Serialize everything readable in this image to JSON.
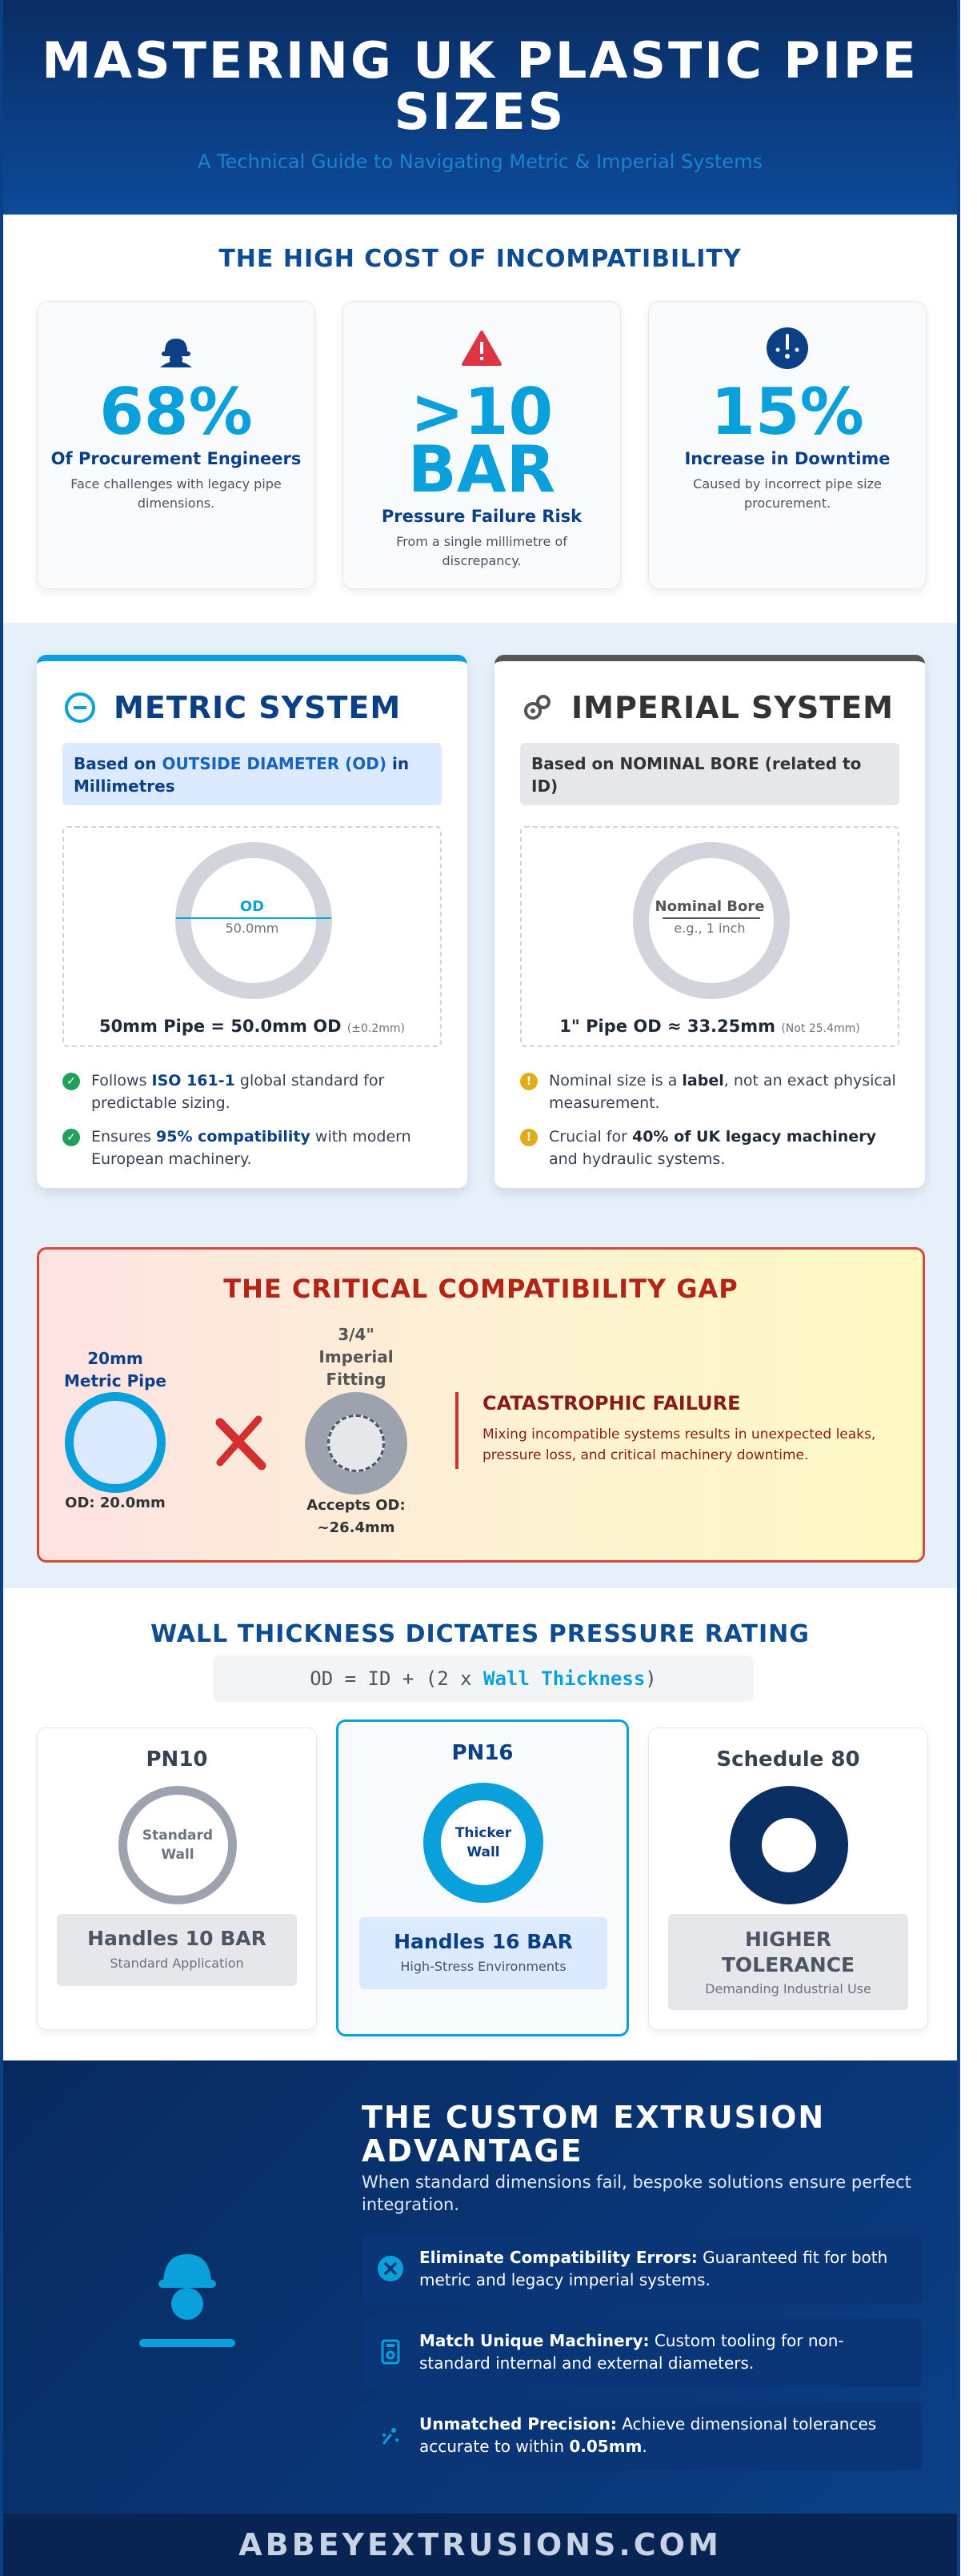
{
  "header": {
    "title": "MASTERING UK PLASTIC PIPE SIZES",
    "subtitle": "A Technical Guide to Navigating Metric & Imperial Systems"
  },
  "cost": {
    "title": "THE HIGH COST OF INCOMPATIBILITY",
    "stats": [
      {
        "icon": "engineer-icon",
        "value": "68%",
        "label": "Of Procurement Engineers",
        "desc": "Face challenges with legacy pipe dimensions."
      },
      {
        "icon": "warning-icon",
        "value_line1": ">10",
        "value_line2": "BAR",
        "label": "Pressure Failure Risk",
        "desc": "From a single millimetre of discrepancy."
      },
      {
        "icon": "clock-icon",
        "value": "15%",
        "label": "Increase in Downtime",
        "desc": "Caused by incorrect pipe size procurement."
      }
    ]
  },
  "metric": {
    "title": "METRIC SYSTEM",
    "basis_prefix": "Based on ",
    "basis_highlight": "OUTSIDE DIAMETER (OD)",
    "basis_suffix": " in Millimetres",
    "ring_label": "OD",
    "ring_value": "50.0mm",
    "formula": "50mm Pipe = 50.0mm OD",
    "formula_note": "(±0.2mm)",
    "bullets": [
      {
        "pre": "Follows ",
        "bold": "ISO 161-1",
        "post": " global standard for predictable sizing."
      },
      {
        "pre": "Ensures ",
        "bold": "95% compatibility",
        "post": " with modern European machinery."
      }
    ]
  },
  "imperial": {
    "title": "IMPERIAL SYSTEM",
    "basis_prefix": "Based on ",
    "basis_highlight": "NOMINAL BORE",
    "basis_suffix": " (related to ID)",
    "ring_label": "Nominal Bore",
    "ring_value": "e.g., 1 inch",
    "formula": "1\" Pipe OD ≈ 33.25mm",
    "formula_note": "(Not 25.4mm)",
    "bullets": [
      {
        "pre": "Nominal size is a ",
        "bold": "label",
        "post": ", not an exact physical measurement."
      },
      {
        "pre": "Crucial for ",
        "bold": "40% of UK legacy machinery",
        "post": " and hydraulic systems."
      }
    ]
  },
  "gap": {
    "title": "THE CRITICAL COMPATIBILITY GAP",
    "pipe_label_line1": "20mm",
    "pipe_label_line2": "Metric Pipe",
    "pipe_caption": "OD: 20.0mm",
    "fitting_label_line1": "3/4\"",
    "fitting_label_line2": "Imperial",
    "fitting_label_line3": "Fitting",
    "fitting_caption_line1": "Accepts OD:",
    "fitting_caption_line2": "~26.4mm",
    "failure_title": "CATASTROPHIC FAILURE",
    "failure_desc": "Mixing incompatible systems results in unexpected leaks, pressure loss, and critical machinery downtime."
  },
  "wall": {
    "title": "WALL THICKNESS DICTATES PRESSURE RATING",
    "formula_pre": "OD = ID + (2 x ",
    "formula_highlight": "Wall Thickness",
    "formula_post": ")",
    "cards": [
      {
        "name": "PN10",
        "ring_text_line1": "Standard",
        "ring_text_line2": "Wall",
        "rating": "Handles 10 BAR",
        "sub": "Standard Application"
      },
      {
        "name": "PN16",
        "ring_text_line1": "Thicker",
        "ring_text_line2": "Wall",
        "rating": "Handles 16 BAR",
        "sub": "High-Stress Environments"
      },
      {
        "name": "Schedule 80",
        "rating_line1": "HIGHER",
        "rating_line2": "TOLERANCE",
        "sub": "Demanding Industrial Use"
      }
    ]
  },
  "custom": {
    "title": "THE CUSTOM EXTRUSION ADVANTAGE",
    "subtitle": "When standard dimensions fail, bespoke solutions ensure perfect integration.",
    "features": [
      {
        "icon": "cross-circle-icon",
        "bold": "Eliminate Compatibility Errors:",
        "text": " Guaranteed fit for both metric and legacy imperial systems."
      },
      {
        "icon": "machine-icon",
        "bold": "Match Unique Machinery:",
        "text": " Custom tooling for non-standard internal and external diameters."
      },
      {
        "icon": "precision-icon",
        "bold": "Unmatched Precision:",
        "text": " Achieve dimensional tolerances accurate to within ",
        "bold2": "0.05mm",
        "text2": "."
      }
    ]
  },
  "footer": {
    "text": "ABBEYEXTRUSIONS.COM"
  },
  "colors": {
    "navy": "#0b3f86",
    "accent": "#0aa0dc",
    "danger": "#d32f2f",
    "success": "#22a05a",
    "warning": "#e0ac1a"
  }
}
